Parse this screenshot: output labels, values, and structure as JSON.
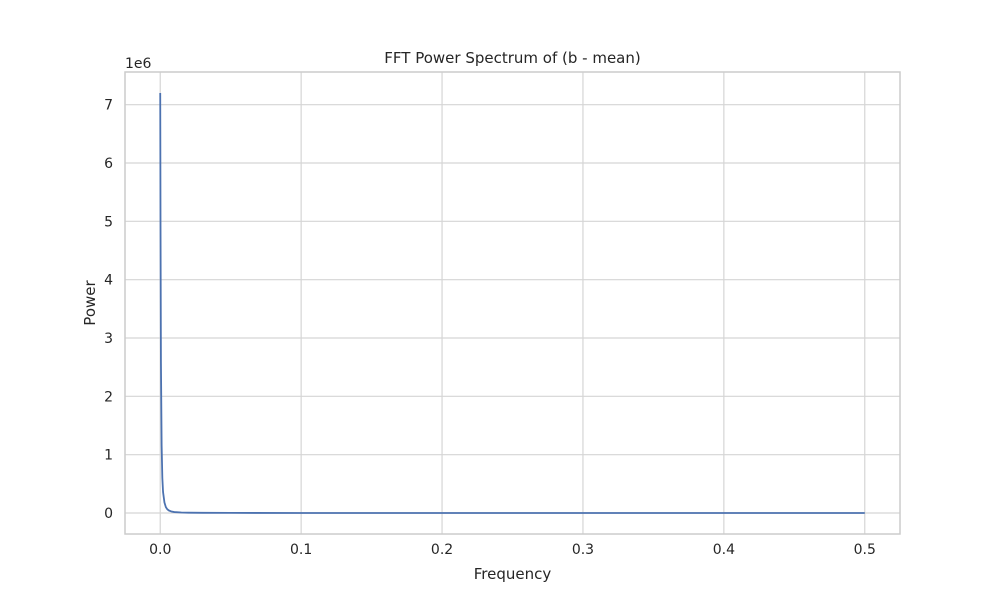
{
  "chart_data": {
    "type": "line",
    "title": "FFT Power Spectrum of (b - mean)",
    "xlabel": "Frequency",
    "ylabel": "Power",
    "y_offset_label": "1e6",
    "y_scale_factor": 1000000,
    "xlim": [
      -0.025,
      0.525
    ],
    "ylim": [
      -0.36,
      7.56
    ],
    "x_ticks": [
      0.0,
      0.1,
      0.2,
      0.3,
      0.4,
      0.5
    ],
    "x_tick_labels": [
      "0.0",
      "0.1",
      "0.2",
      "0.3",
      "0.4",
      "0.5"
    ],
    "y_ticks": [
      0,
      1,
      2,
      3,
      4,
      5,
      6,
      7
    ],
    "y_tick_labels": [
      "0",
      "1",
      "2",
      "3",
      "4",
      "5",
      "6",
      "7"
    ],
    "grid": true,
    "series": [
      {
        "color": "#4c72b0",
        "x": [
          0.0,
          0.0002,
          0.0005,
          0.001,
          0.0015,
          0.002,
          0.003,
          0.004,
          0.005,
          0.006,
          0.008,
          0.01,
          0.015,
          0.02,
          0.03,
          0.05,
          0.1,
          0.2,
          0.3,
          0.4,
          0.5
        ],
        "y": [
          7.2,
          5.0,
          2.6,
          1.15,
          0.6,
          0.36,
          0.18,
          0.1,
          0.065,
          0.045,
          0.025,
          0.016,
          0.008,
          0.005,
          0.003,
          0.0015,
          0.0005,
          0.0002,
          0.0001,
          0.0001,
          0.0001
        ]
      }
    ]
  }
}
